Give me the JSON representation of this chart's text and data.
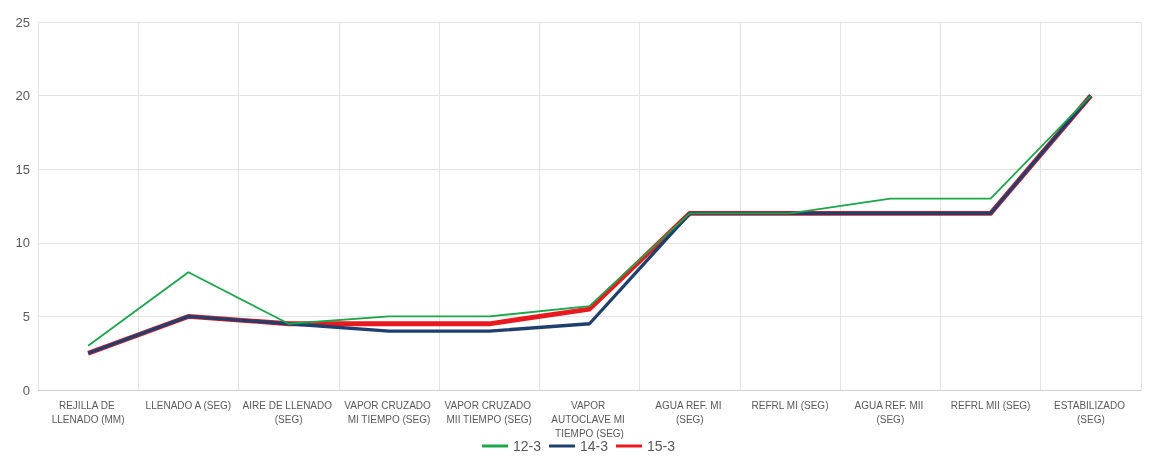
{
  "chart_data": {
    "type": "line",
    "categories": [
      "REJILLA DE LLENADO (MM)",
      "LLENADO A (SEG)",
      "AIRE DE LLENADO (SEG)",
      "VAPOR CRUZADO MI TIEMPO (SEG)",
      "VAPOR CRUZADO MII TIEMPO (SEG)",
      "VAPOR AUTOCLAVE MI TIEMPO (SEG)",
      "AGUA REF. MI (SEG)",
      "REFRL MI (SEG)",
      "AGUA REF. MII (SEG)",
      "REFRL MII (SEG)",
      "ESTABILIZADO (SEG)"
    ],
    "series": [
      {
        "name": "12-3",
        "color": "#1aa64a",
        "values": [
          3,
          8,
          4.5,
          5,
          5,
          5.7,
          12,
          12,
          13,
          13,
          20
        ]
      },
      {
        "name": "14-3",
        "color": "#1f3f6e",
        "values": [
          2.5,
          5,
          4.5,
          4,
          4,
          4.5,
          12,
          12,
          12,
          12,
          20
        ]
      },
      {
        "name": "15-3",
        "color": "#e8191f",
        "values": [
          2.5,
          5,
          4.5,
          4.5,
          4.5,
          5.5,
          12,
          12,
          12,
          12,
          20
        ]
      }
    ],
    "ylim": [
      0,
      25
    ],
    "yticks": [
      0,
      5,
      10,
      15,
      20,
      25
    ],
    "grid": true,
    "legend": "bottom",
    "marker": "none",
    "line_style": "solid"
  }
}
